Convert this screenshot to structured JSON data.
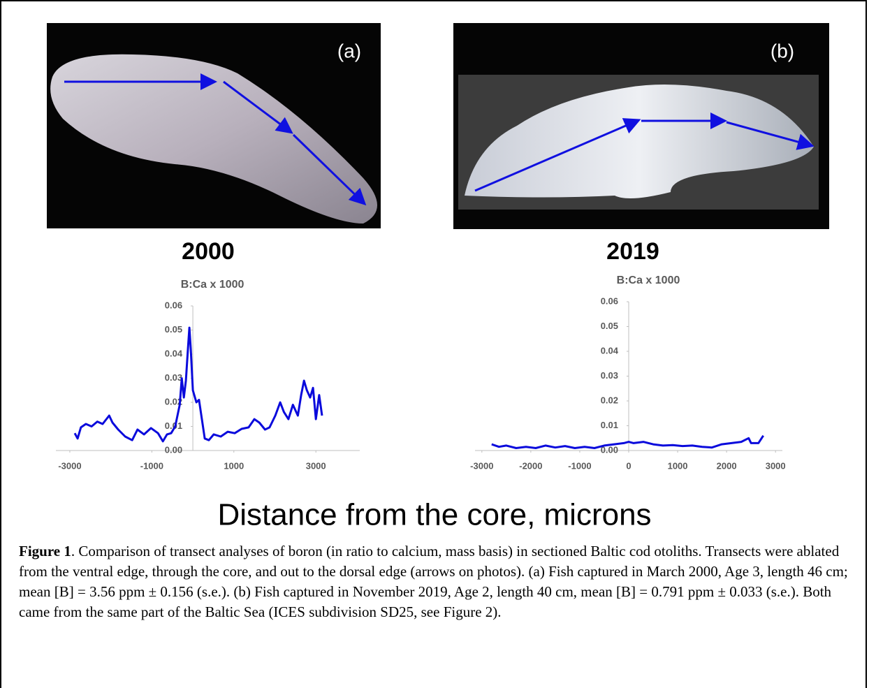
{
  "photos": [
    {
      "label": "(a)"
    },
    {
      "label": "(b)"
    }
  ],
  "chart_data": [
    {
      "type": "line",
      "title": "2000",
      "y_axis_label": "B:Ca x 1000",
      "xlim": [
        -3340,
        4070
      ],
      "ylim": [
        0,
        0.06
      ],
      "xticks": [
        -3000,
        -1000,
        1000,
        3000
      ],
      "yticks": [
        {
          "value": 0,
          "label": "0.00"
        },
        {
          "value": 0.01,
          "label": "0.01"
        },
        {
          "value": 0.02,
          "label": "0.02"
        },
        {
          "value": 0.03,
          "label": "0.03"
        },
        {
          "value": 0.04,
          "label": "0.04"
        },
        {
          "value": 0.05,
          "label": "0.05"
        },
        {
          "value": 0.06,
          "label": "0.06"
        }
      ],
      "x": [
        -2880,
        -2810,
        -2730,
        -2610,
        -2470,
        -2330,
        -2200,
        -2040,
        -1960,
        -1820,
        -1650,
        -1480,
        -1350,
        -1190,
        -1020,
        -850,
        -730,
        -630,
        -530,
        -430,
        -320,
        -270,
        -220,
        -170,
        -120,
        -85,
        -50,
        0,
        85,
        150,
        220,
        290,
        390,
        510,
        680,
        850,
        1020,
        1190,
        1360,
        1500,
        1620,
        1760,
        1870,
        2010,
        2130,
        2220,
        2330,
        2440,
        2560,
        2640,
        2710,
        2780,
        2860,
        2930,
        3000,
        3080,
        3150
      ],
      "series": [
        {
          "color": "#0a0adc",
          "values": [
            0.0072,
            0.005,
            0.0096,
            0.011,
            0.01,
            0.012,
            0.011,
            0.0145,
            0.0116,
            0.0087,
            0.0058,
            0.0043,
            0.0087,
            0.0067,
            0.0093,
            0.0072,
            0.0038,
            0.0067,
            0.0072,
            0.01,
            0.019,
            0.03,
            0.022,
            0.029,
            0.042,
            0.051,
            0.042,
            0.025,
            0.02,
            0.021,
            0.013,
            0.005,
            0.0043,
            0.0067,
            0.0058,
            0.0078,
            0.0072,
            0.009,
            0.0096,
            0.013,
            0.0116,
            0.0087,
            0.0096,
            0.0145,
            0.02,
            0.016,
            0.013,
            0.019,
            0.0145,
            0.023,
            0.029,
            0.025,
            0.022,
            0.026,
            0.013,
            0.023,
            0.0145
          ]
        }
      ]
    },
    {
      "type": "line",
      "title": "2019",
      "y_axis_label": "B:Ca x 1000",
      "xlim": [
        -3140,
        3140
      ],
      "ylim": [
        0,
        0.06
      ],
      "xticks": [
        -3000,
        -2000,
        -1000,
        0,
        1000,
        2000,
        3000
      ],
      "yticks": [
        {
          "value": 0,
          "label": "0.00"
        },
        {
          "value": 0.01,
          "label": "0.01"
        },
        {
          "value": 0.02,
          "label": "0.02"
        },
        {
          "value": 0.03,
          "label": "0.03"
        },
        {
          "value": 0.04,
          "label": "0.04"
        },
        {
          "value": 0.05,
          "label": "0.05"
        },
        {
          "value": 0.06,
          "label": "0.06"
        }
      ],
      "x": [
        -2800,
        -2650,
        -2500,
        -2300,
        -2100,
        -1900,
        -1700,
        -1500,
        -1300,
        -1100,
        -900,
        -700,
        -500,
        -300,
        -100,
        0,
        100,
        300,
        500,
        700,
        900,
        1100,
        1300,
        1500,
        1700,
        1900,
        2100,
        2300,
        2450,
        2500,
        2650,
        2750
      ],
      "series": [
        {
          "color": "#0a0adc",
          "values": [
            0.0025,
            0.0015,
            0.002,
            0.001,
            0.0015,
            0.001,
            0.002,
            0.0012,
            0.0018,
            0.001,
            0.0015,
            0.001,
            0.002,
            0.0025,
            0.003,
            0.0035,
            0.003,
            0.0035,
            0.0025,
            0.002,
            0.0022,
            0.0018,
            0.002,
            0.0015,
            0.0012,
            0.0025,
            0.003,
            0.0035,
            0.005,
            0.003,
            0.003,
            0.006
          ]
        }
      ]
    }
  ],
  "x_axis_label": "Distance from the core, microns",
  "caption": {
    "label": "Figure 1",
    "text": ". Comparison of transect analyses of boron (in ratio to calcium, mass basis) in sectioned Baltic cod otoliths. Transects were ablated from the ventral edge, through the core, and out to the dorsal edge (arrows on photos). (a) Fish captured in March 2000, Age 3, length 46 cm; mean [B] = 3.56 ppm ± 0.156 (s.e.). (b) Fish captured in November 2019, Age 2, length 40 cm, mean [B] = 0.791 ppm ± 0.033 (s.e.). Both came from the same part of the Baltic Sea (ICES subdivision SD25, see Figure 2)."
  }
}
